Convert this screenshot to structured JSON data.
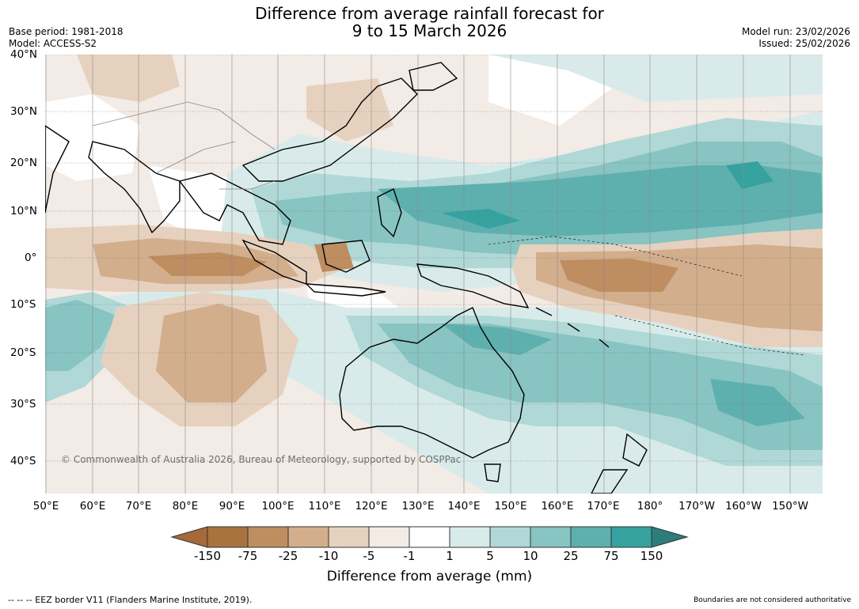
{
  "header": {
    "title_line1": "Difference from average rainfall forecast for",
    "title_line2": "9 to 15 March 2026",
    "base_period": "Base period: 1981-2018",
    "model": "Model: ACCESS-S2",
    "model_run": "Model run: 23/02/2026",
    "issued": "Issued: 25/02/2026"
  },
  "map": {
    "lat_labels": [
      "40°N",
      "30°N",
      "20°N",
      "10°N",
      "0°",
      "10°S",
      "20°S",
      "30°S",
      "40°S"
    ],
    "lon_labels": [
      "50°E",
      "60°E",
      "70°E",
      "80°E",
      "90°E",
      "100°E",
      "110°E",
      "120°E",
      "130°E",
      "140°E",
      "150°E",
      "160°E",
      "170°E",
      "180°",
      "170°W",
      "160°W",
      "150°W"
    ],
    "copyright": "© Commonwealth of Australia 2026, Bureau of Meteorology, supported by COSPPac"
  },
  "colorbar": {
    "labels": [
      "-150",
      "-75",
      "-25",
      "-10",
      "-5",
      "-1",
      "1",
      "5",
      "10",
      "25",
      "75",
      "150"
    ],
    "colors": [
      "#a8733e",
      "#be8d60",
      "#d3ae8c",
      "#e6d1bf",
      "#f3ebe5",
      "#ffffff",
      "#d8ebea",
      "#b0d8d6",
      "#87c4c2",
      "#5eb0af",
      "#35a29f"
    ],
    "end_low": "#a5693a",
    "end_high": "#2d7d7b",
    "title": "Difference from average (mm)"
  },
  "footer": {
    "left": "--  --  -- EEZ border V11 (Flanders Marine Institute, 2019).",
    "right": "Boundaries are not considered authoritative"
  }
}
